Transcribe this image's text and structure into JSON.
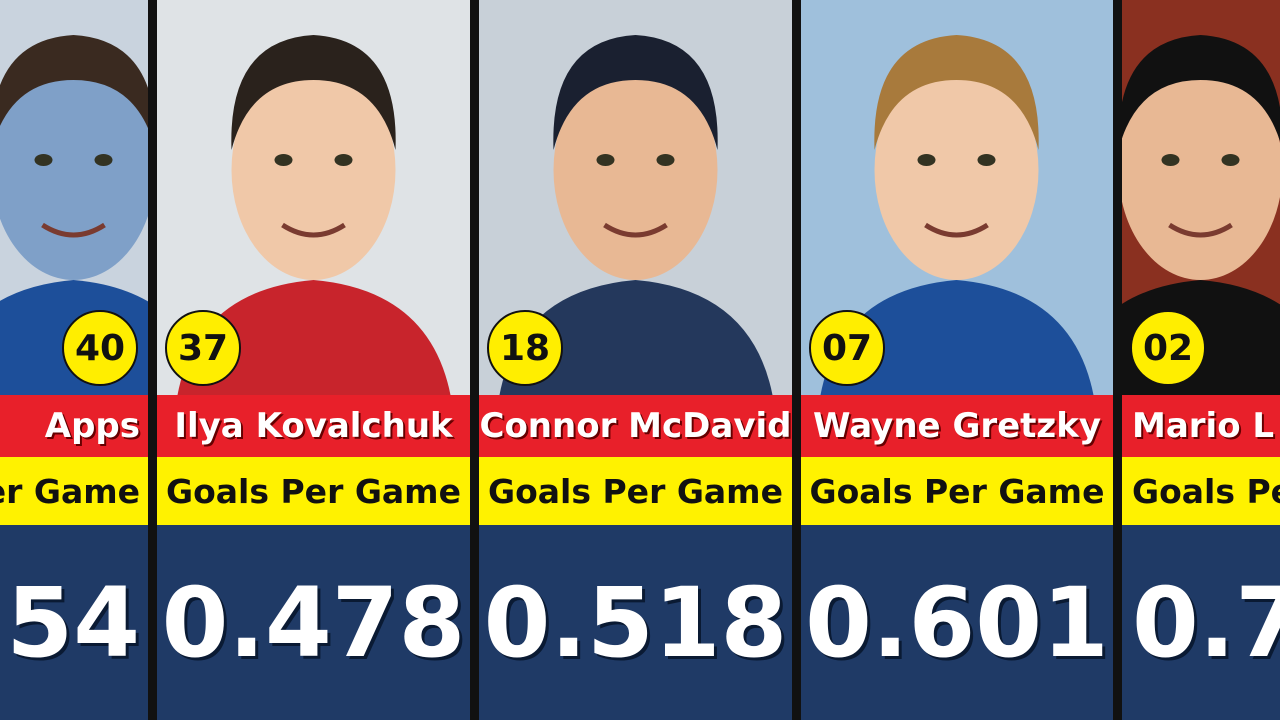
{
  "cards": [
    {
      "rank": "40",
      "name": "Apps",
      "stat_label": "er Game",
      "value": "54"
    },
    {
      "rank": "37",
      "name": "Ilya Kovalchuk",
      "stat_label": "Goals Per Game",
      "value": "0.478"
    },
    {
      "rank": "18",
      "name": "Connor McDavid",
      "stat_label": "Goals Per Game",
      "value": "0.518"
    },
    {
      "rank": "07",
      "name": "Wayne Gretzky",
      "stat_label": "Goals Per Game",
      "value": "0.601"
    },
    {
      "rank": "02",
      "name": "Mario L",
      "stat_label": "Goals Pe",
      "value": "0.7"
    }
  ]
}
